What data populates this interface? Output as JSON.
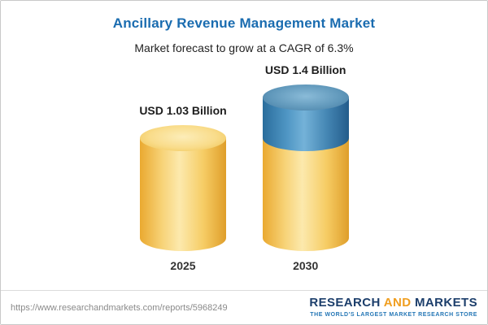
{
  "header": {
    "title": "Ancillary Revenue Management Market",
    "subtitle": "Market forecast to grow at a CAGR of 6.3%"
  },
  "chart_data": {
    "type": "bar",
    "title": "Ancillary Revenue Management Market",
    "subtitle": "Market forecast to grow at a CAGR of 6.3%",
    "unit": "USD Billion",
    "cagr": "6.3%",
    "categories": [
      "2025",
      "2030"
    ],
    "values": [
      1.03,
      1.4
    ],
    "value_labels": [
      "USD 1.03 Billion",
      "USD 1.4 Billion"
    ],
    "legend": null,
    "grid": "off",
    "colors": {
      "base_bar": "#f5c963",
      "growth_segment": "#4587b4",
      "title_accent": "#1a6cb0"
    }
  },
  "footer": {
    "url": "https://www.researchandmarkets.com/reports/5968249",
    "logo": {
      "word1": "RESEARCH",
      "word2": "AND",
      "word3": "MARKETS",
      "tagline": "THE WORLD'S LARGEST MARKET RESEARCH STORE"
    }
  }
}
